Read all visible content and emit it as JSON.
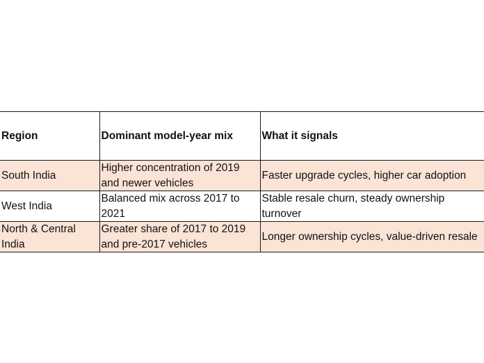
{
  "table": {
    "headers": [
      "Region",
      "Dominant model-year mix",
      "What it signals"
    ],
    "rows": [
      {
        "region": "South India",
        "mix": "Higher concentration of 2019 and newer vehicles",
        "signal": "Faster upgrade cycles, higher car adoption"
      },
      {
        "region": "West India",
        "mix": "Balanced mix across 2017 to 2021",
        "signal": "Stable resale churn, steady ownership turnover"
      },
      {
        "region": "North & Central India",
        "mix": "Greater share of 2017 to 2019 and pre-2017 vehicles",
        "signal": "Longer ownership cycles, value-driven resale"
      }
    ]
  },
  "colors": {
    "row_shade": "#fbe3d6",
    "border": "#1a1a1a"
  }
}
